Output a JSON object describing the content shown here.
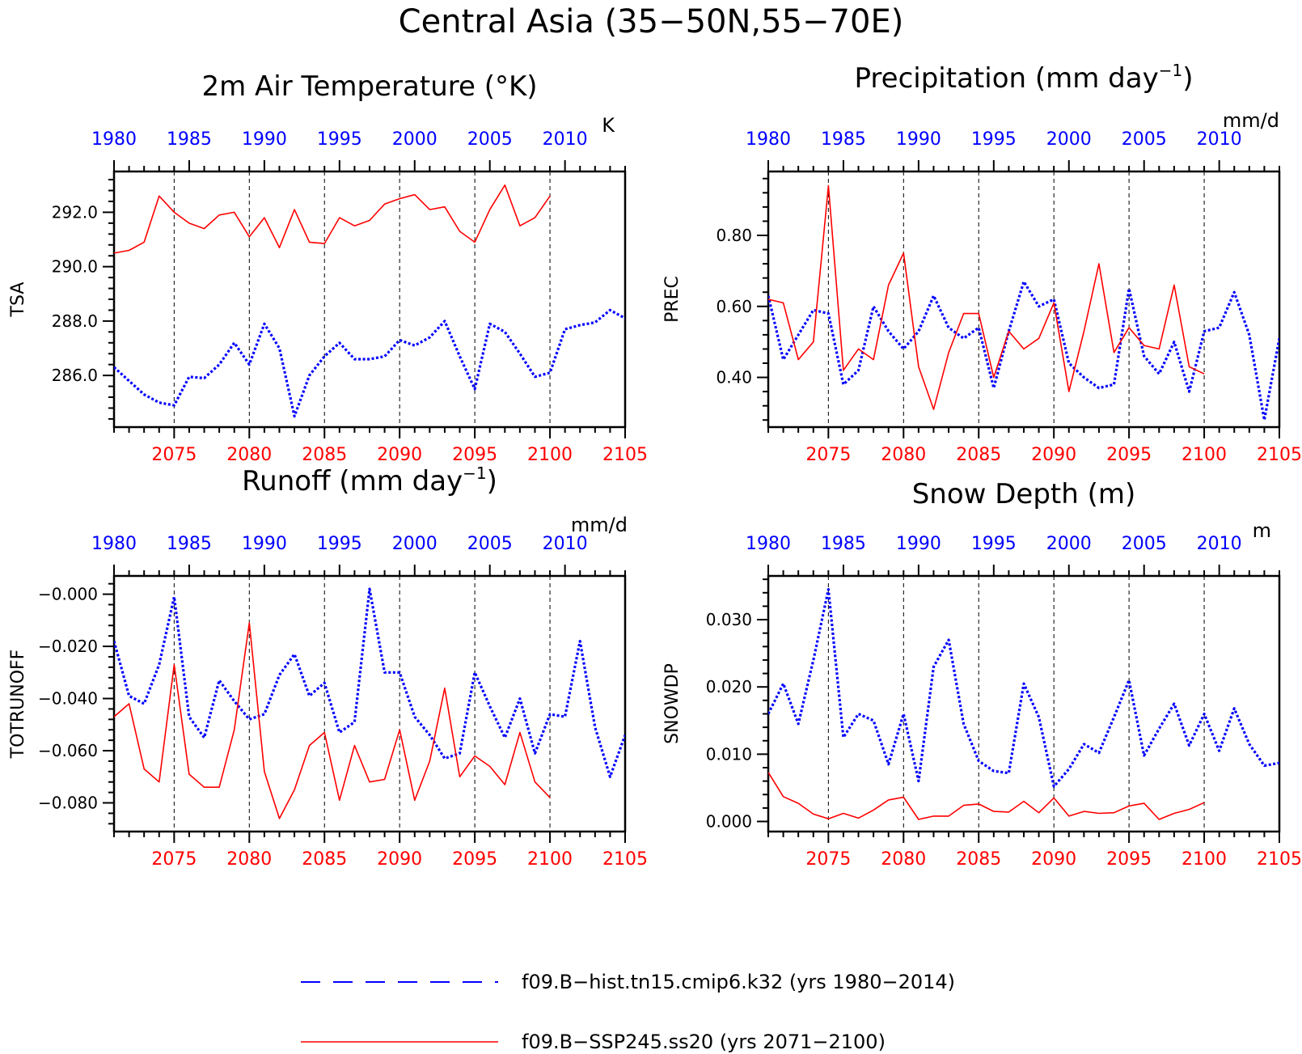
{
  "title": "Central Asia (35−50N,55−70E)",
  "legend": {
    "hist_label": "f09.B−hist.tn15.cmip6.k32 (yrs 1980−2014)",
    "ssp_label": "f09.B−SSP245.ss20 (yrs 2071−2100)",
    "hist_color": "#0000ff",
    "ssp_color": "#ff0000"
  },
  "chart_data": [
    {
      "type": "line",
      "title": "2m Air Temperature (°K)",
      "ylabel": "TSA",
      "units": "K",
      "ylim": [
        284.1,
        293.5
      ],
      "yticks": [
        "286.0",
        "288.0",
        "290.0",
        "292.0"
      ],
      "ytick_values": [
        286,
        288,
        290,
        292
      ],
      "grid": "dashed vertical lines",
      "x_top": {
        "label_values": [
          1980,
          1985,
          1990,
          1995,
          2000,
          2005,
          2010
        ],
        "labels": [
          "1980",
          "1985",
          "1990",
          "1995",
          "2000",
          "2005",
          "2010"
        ],
        "range": [
          1980,
          2014
        ]
      },
      "x_bottom": {
        "label_values": [
          2075,
          2080,
          2085,
          2090,
          2095,
          2100,
          2105
        ],
        "labels": [
          "2075",
          "2080",
          "2085",
          "2090",
          "2095",
          "2100",
          "2105"
        ],
        "range": [
          2071,
          2105
        ]
      },
      "series": [
        {
          "name": "f09.B−hist.tn15.cmip6.k32 (yrs 1980−2014)",
          "axis": "top",
          "style": "dotted",
          "x": [
            1980,
            1981,
            1982,
            1983,
            1984,
            1985,
            1986,
            1987,
            1988,
            1989,
            1990,
            1991,
            1992,
            1993,
            1994,
            1995,
            1996,
            1997,
            1998,
            1999,
            2000,
            2001,
            2002,
            2003,
            2004,
            2005,
            2006,
            2007,
            2008,
            2009,
            2010,
            2011,
            2012,
            2013,
            2014
          ],
          "values": [
            286.3,
            285.8,
            285.3,
            285.0,
            284.9,
            285.95,
            285.9,
            286.4,
            287.2,
            286.4,
            287.9,
            287.0,
            284.5,
            286.0,
            286.7,
            287.2,
            286.6,
            286.6,
            286.7,
            287.3,
            287.1,
            287.4,
            288.0,
            286.7,
            285.5,
            287.9,
            287.6,
            286.8,
            285.95,
            286.1,
            287.7,
            287.85,
            287.95,
            288.4,
            288.1
          ]
        },
        {
          "name": "f09.B−SSP245.ss20 (yrs 2071−2100)",
          "axis": "bottom",
          "style": "solid",
          "x": [
            2071,
            2072,
            2073,
            2074,
            2075,
            2076,
            2077,
            2078,
            2079,
            2080,
            2081,
            2082,
            2083,
            2084,
            2085,
            2086,
            2087,
            2088,
            2089,
            2090,
            2091,
            2092,
            2093,
            2094,
            2095,
            2096,
            2097,
            2098,
            2099,
            2100
          ],
          "values": [
            290.5,
            290.6,
            290.9,
            292.6,
            292.0,
            291.6,
            291.4,
            291.9,
            292.0,
            291.1,
            291.8,
            290.7,
            292.1,
            290.9,
            290.85,
            291.8,
            291.5,
            291.7,
            292.3,
            292.5,
            292.65,
            292.1,
            292.2,
            291.3,
            290.9,
            292.1,
            293.0,
            291.5,
            291.8,
            292.6
          ]
        }
      ]
    },
    {
      "type": "line",
      "title": "Precipitation (mm day⁻¹)",
      "ylabel": "PREC",
      "units": "mm/d",
      "ylim": [
        0.26,
        0.98
      ],
      "yticks": [
        "0.40",
        "0.60",
        "0.80"
      ],
      "ytick_values": [
        0.4,
        0.6,
        0.8
      ],
      "grid": "dashed vertical lines",
      "x_top": {
        "label_values": [
          1980,
          1985,
          1990,
          1995,
          2000,
          2005,
          2010
        ],
        "labels": [
          "1980",
          "1985",
          "1990",
          "1995",
          "2000",
          "2005",
          "2010"
        ],
        "range": [
          1980,
          2014
        ]
      },
      "x_bottom": {
        "label_values": [
          2075,
          2080,
          2085,
          2090,
          2095,
          2100,
          2105
        ],
        "labels": [
          "2075",
          "2080",
          "2085",
          "2090",
          "2095",
          "2100",
          "2105"
        ],
        "range": [
          2071,
          2105
        ]
      },
      "series": [
        {
          "name": "f09.B−hist.tn15.cmip6.k32 (yrs 1980−2014)",
          "axis": "top",
          "style": "dotted",
          "x": [
            1980,
            1981,
            1982,
            1983,
            1984,
            1985,
            1986,
            1987,
            1988,
            1989,
            1990,
            1991,
            1992,
            1993,
            1994,
            1995,
            1996,
            1997,
            1998,
            1999,
            2000,
            2001,
            2002,
            2003,
            2004,
            2005,
            2006,
            2007,
            2008,
            2009,
            2010,
            2011,
            2012,
            2013,
            2014
          ],
          "values": [
            0.63,
            0.45,
            0.52,
            0.59,
            0.58,
            0.38,
            0.42,
            0.6,
            0.53,
            0.48,
            0.53,
            0.63,
            0.54,
            0.51,
            0.54,
            0.37,
            0.53,
            0.67,
            0.6,
            0.62,
            0.44,
            0.4,
            0.37,
            0.38,
            0.65,
            0.46,
            0.41,
            0.5,
            0.36,
            0.53,
            0.54,
            0.64,
            0.52,
            0.28,
            0.51
          ]
        },
        {
          "name": "f09.B−SSP245.ss20 (yrs 2071−2100)",
          "axis": "bottom",
          "style": "solid",
          "x": [
            2071,
            2072,
            2073,
            2074,
            2075,
            2076,
            2077,
            2078,
            2079,
            2080,
            2081,
            2082,
            2083,
            2084,
            2085,
            2086,
            2087,
            2088,
            2089,
            2090,
            2091,
            2092,
            2093,
            2094,
            2095,
            2096,
            2097,
            2098,
            2099,
            2100
          ],
          "values": [
            0.62,
            0.61,
            0.45,
            0.5,
            0.94,
            0.42,
            0.48,
            0.45,
            0.66,
            0.75,
            0.43,
            0.31,
            0.47,
            0.58,
            0.58,
            0.4,
            0.53,
            0.48,
            0.51,
            0.61,
            0.36,
            0.53,
            0.72,
            0.47,
            0.54,
            0.49,
            0.48,
            0.66,
            0.43,
            0.41
          ]
        }
      ]
    },
    {
      "type": "line",
      "title": "Runoff (mm day⁻¹)",
      "ylabel": "TOTRUNOFF",
      "units": "mm/d",
      "ylim": [
        -0.091,
        0.007
      ],
      "yticks": [
        "−0.080",
        "−0.060",
        "−0.040",
        "−0.020",
        "−0.000"
      ],
      "ytick_values": [
        -0.08,
        -0.06,
        -0.04,
        -0.02,
        0.0
      ],
      "grid": "dashed vertical lines",
      "x_top": {
        "label_values": [
          1980,
          1985,
          1990,
          1995,
          2000,
          2005,
          2010
        ],
        "labels": [
          "1980",
          "1985",
          "1990",
          "1995",
          "2000",
          "2005",
          "2010"
        ],
        "range": [
          1980,
          2014
        ]
      },
      "x_bottom": {
        "label_values": [
          2075,
          2080,
          2085,
          2090,
          2095,
          2100,
          2105
        ],
        "labels": [
          "2075",
          "2080",
          "2085",
          "2090",
          "2095",
          "2100",
          "2105"
        ],
        "range": [
          2071,
          2105
        ]
      },
      "series": [
        {
          "name": "f09.B−hist.tn15.cmip6.k32 (yrs 1980−2014)",
          "axis": "top",
          "style": "dotted",
          "x": [
            1980,
            1981,
            1982,
            1983,
            1984,
            1985,
            1986,
            1987,
            1988,
            1989,
            1990,
            1991,
            1992,
            1993,
            1994,
            1995,
            1996,
            1997,
            1998,
            1999,
            2000,
            2001,
            2002,
            2003,
            2004,
            2005,
            2006,
            2007,
            2008,
            2009,
            2010,
            2011,
            2012,
            2013,
            2014
          ],
          "values": [
            -0.018,
            -0.039,
            -0.042,
            -0.027,
            -0.001,
            -0.047,
            -0.055,
            -0.033,
            -0.041,
            -0.048,
            -0.046,
            -0.031,
            -0.023,
            -0.039,
            -0.034,
            -0.053,
            -0.049,
            0.002,
            -0.03,
            -0.03,
            -0.047,
            -0.054,
            -0.063,
            -0.061,
            -0.03,
            -0.043,
            -0.055,
            -0.04,
            -0.061,
            -0.046,
            -0.047,
            -0.018,
            -0.051,
            -0.07,
            -0.054
          ]
        },
        {
          "name": "f09.B−SSP245.ss20 (yrs 2071−2100)",
          "axis": "bottom",
          "style": "solid",
          "x": [
            2071,
            2072,
            2073,
            2074,
            2075,
            2076,
            2077,
            2078,
            2079,
            2080,
            2081,
            2082,
            2083,
            2084,
            2085,
            2086,
            2087,
            2088,
            2089,
            2090,
            2091,
            2092,
            2093,
            2094,
            2095,
            2096,
            2097,
            2098,
            2099,
            2100
          ],
          "values": [
            -0.047,
            -0.042,
            -0.067,
            -0.072,
            -0.027,
            -0.069,
            -0.074,
            -0.074,
            -0.052,
            -0.011,
            -0.068,
            -0.086,
            -0.075,
            -0.058,
            -0.053,
            -0.079,
            -0.058,
            -0.072,
            -0.071,
            -0.052,
            -0.079,
            -0.064,
            -0.036,
            -0.07,
            -0.062,
            -0.066,
            -0.073,
            -0.053,
            -0.072,
            -0.078
          ]
        }
      ]
    },
    {
      "type": "line",
      "title": "Snow Depth (m)",
      "ylabel": "SNOWDP",
      "units": "m",
      "ylim": [
        -0.0015,
        0.0365
      ],
      "yticks": [
        "0.000",
        "0.010",
        "0.020",
        "0.030"
      ],
      "ytick_values": [
        0.0,
        0.01,
        0.02,
        0.03
      ],
      "grid": "dashed vertical lines",
      "x_top": {
        "label_values": [
          1980,
          1985,
          1990,
          1995,
          2000,
          2005,
          2010
        ],
        "labels": [
          "1980",
          "1985",
          "1990",
          "1995",
          "2000",
          "2005",
          "2010"
        ],
        "range": [
          1980,
          2014
        ]
      },
      "x_bottom": {
        "label_values": [
          2075,
          2080,
          2085,
          2090,
          2095,
          2100,
          2105
        ],
        "labels": [
          "2075",
          "2080",
          "2085",
          "2090",
          "2095",
          "2100",
          "2105"
        ],
        "range": [
          2071,
          2105
        ]
      },
      "series": [
        {
          "name": "f09.B−hist.tn15.cmip6.k32 (yrs 1980−2014)",
          "axis": "top",
          "style": "dotted",
          "x": [
            1980,
            1981,
            1982,
            1983,
            1984,
            1985,
            1986,
            1987,
            1988,
            1989,
            1990,
            1991,
            1992,
            1993,
            1994,
            1995,
            1996,
            1997,
            1998,
            1999,
            2000,
            2001,
            2002,
            2003,
            2004,
            2005,
            2006,
            2007,
            2008,
            2009,
            2010,
            2011,
            2012,
            2013,
            2014
          ],
          "values": [
            0.016,
            0.0205,
            0.0145,
            0.024,
            0.0345,
            0.0125,
            0.016,
            0.015,
            0.0085,
            0.016,
            0.006,
            0.023,
            0.027,
            0.0145,
            0.009,
            0.0075,
            0.0072,
            0.0205,
            0.0155,
            0.0052,
            0.0078,
            0.0115,
            0.0102,
            0.0155,
            0.021,
            0.0098,
            0.0138,
            0.0175,
            0.0113,
            0.016,
            0.0105,
            0.0168,
            0.0115,
            0.0083,
            0.0087
          ]
        },
        {
          "name": "f09.B−SSP245.ss20 (yrs 2071−2100)",
          "axis": "bottom",
          "style": "solid",
          "x": [
            2071,
            2072,
            2073,
            2074,
            2075,
            2076,
            2077,
            2078,
            2079,
            2080,
            2081,
            2082,
            2083,
            2084,
            2085,
            2086,
            2087,
            2088,
            2089,
            2090,
            2091,
            2092,
            2093,
            2094,
            2095,
            2096,
            2097,
            2098,
            2099,
            2100
          ],
          "values": [
            0.0073,
            0.0037,
            0.0027,
            0.0011,
            0.0004,
            0.0012,
            0.0005,
            0.0017,
            0.0032,
            0.0036,
            0.0003,
            0.0008,
            0.0008,
            0.0024,
            0.0026,
            0.0015,
            0.0014,
            0.003,
            0.0013,
            0.0035,
            0.0008,
            0.0015,
            0.0012,
            0.0013,
            0.0023,
            0.0027,
            0.0003,
            0.0012,
            0.0018,
            0.0028
          ]
        }
      ]
    }
  ]
}
